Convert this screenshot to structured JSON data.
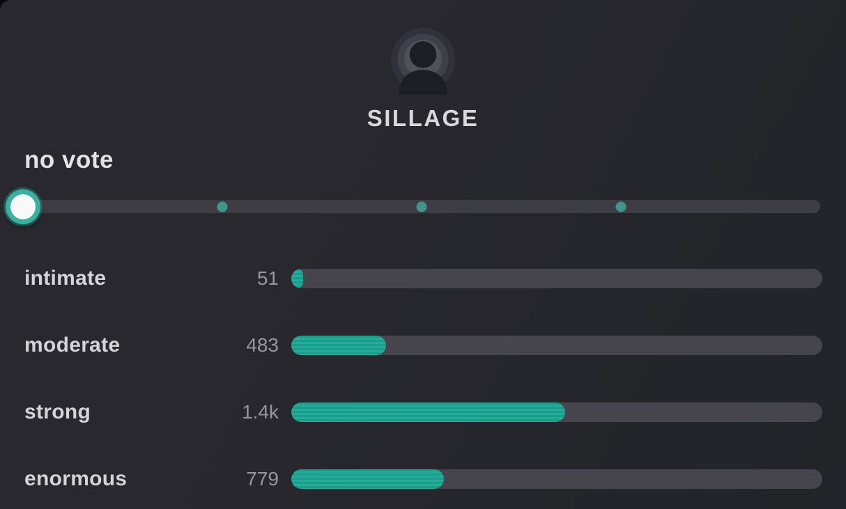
{
  "header": {
    "title": "SILLAGE",
    "avatar_icon": "person-radiating-sillage-icon"
  },
  "slider": {
    "label": "no vote",
    "handle_position_pct": 0,
    "dot_positions_pct": [
      25,
      50,
      75
    ]
  },
  "votes": {
    "rows": [
      {
        "label": "intimate",
        "value": 51,
        "display": "51"
      },
      {
        "label": "moderate",
        "value": 483,
        "display": "483"
      },
      {
        "label": "strong",
        "value": 1400,
        "display": "1.4k"
      },
      {
        "label": "enormous",
        "value": 779,
        "display": "779"
      }
    ]
  },
  "chart_data": {
    "type": "bar",
    "orientation": "horizontal",
    "title": "SILLAGE",
    "categories": [
      "intimate",
      "moderate",
      "strong",
      "enormous"
    ],
    "values": [
      51,
      483,
      1400,
      779
    ],
    "value_labels": [
      "51",
      "483",
      "1.4k",
      "779"
    ],
    "bar_color": "#1fa591",
    "track_color": "#46454e"
  },
  "colors": {
    "accent_teal": "#1fa591",
    "handle_ring": "#3ab0a0",
    "step_dot": "#40968b",
    "slider_track": "#3e3d46",
    "bar_track": "#46454e",
    "card_background": "#27272d",
    "label_text": "#d4d4d7",
    "count_text": "#96969c",
    "title_text": "#d9d9dc"
  }
}
